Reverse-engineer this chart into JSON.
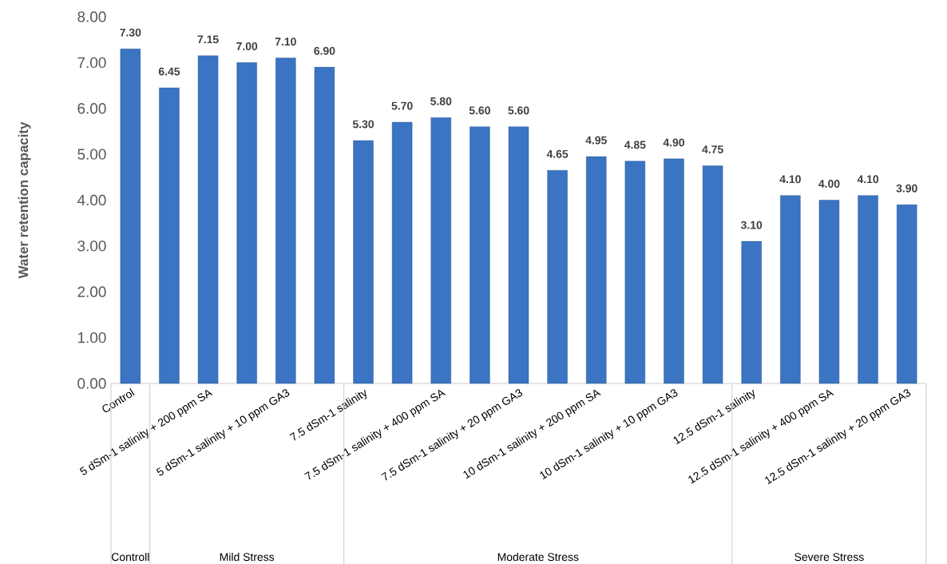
{
  "chart_data": {
    "type": "bar",
    "ylabel": "Water retention capacity",
    "categories": [
      "Control",
      null,
      "5 dSm-1 salinity + 200 ppm SA",
      null,
      "5 dSm-1 salinity + 10 ppm GA3",
      null,
      "7.5 dSm-1 salinity",
      null,
      "7.5 dSm-1 salinity + 400 ppm SA",
      null,
      "7.5 dSm-1 salinity + 20 ppm GA3",
      null,
      "10 dSm-1 salinity + 200 ppm SA",
      null,
      "10 dSm-1 salinity + 10 ppm GA3",
      null,
      "12.5 dSm-1 salinity",
      null,
      "12.5 dSm-1 salinity + 400 ppm SA",
      null,
      "12.5 dSm-1 salinity + 20 ppm GA3"
    ],
    "values": [
      7.3,
      6.45,
      7.15,
      7.0,
      7.1,
      6.9,
      5.3,
      5.7,
      5.8,
      5.6,
      5.6,
      4.65,
      4.95,
      4.85,
      4.9,
      4.75,
      3.1,
      4.1,
      4.0,
      4.1,
      3.9
    ],
    "value_labels": [
      "7.30",
      "6.45",
      "7.15",
      "7.00",
      "7.10",
      "6.90",
      "5.30",
      "5.70",
      "5.80",
      "5.60",
      "5.60",
      "4.65",
      "4.95",
      "4.85",
      "4.90",
      "4.75",
      "3.10",
      "4.10",
      "4.00",
      "4.10",
      "3.90"
    ],
    "color": "#3a74c2",
    "ylim": [
      0,
      8
    ],
    "yticks": [
      {
        "value": 0,
        "label": "0.00"
      },
      {
        "value": 1,
        "label": "1.00"
      },
      {
        "value": 2,
        "label": "2.00"
      },
      {
        "value": 3,
        "label": "3.00"
      },
      {
        "value": 4,
        "label": "4.00"
      },
      {
        "value": 5,
        "label": "5.00"
      },
      {
        "value": 6,
        "label": "6.00"
      },
      {
        "value": 7,
        "label": "7.00"
      },
      {
        "value": 8,
        "label": "8.00"
      }
    ],
    "annotations": [
      "Controll",
      "Mild Stress",
      "Moderate Stress",
      "Severe Stress"
    ]
  }
}
